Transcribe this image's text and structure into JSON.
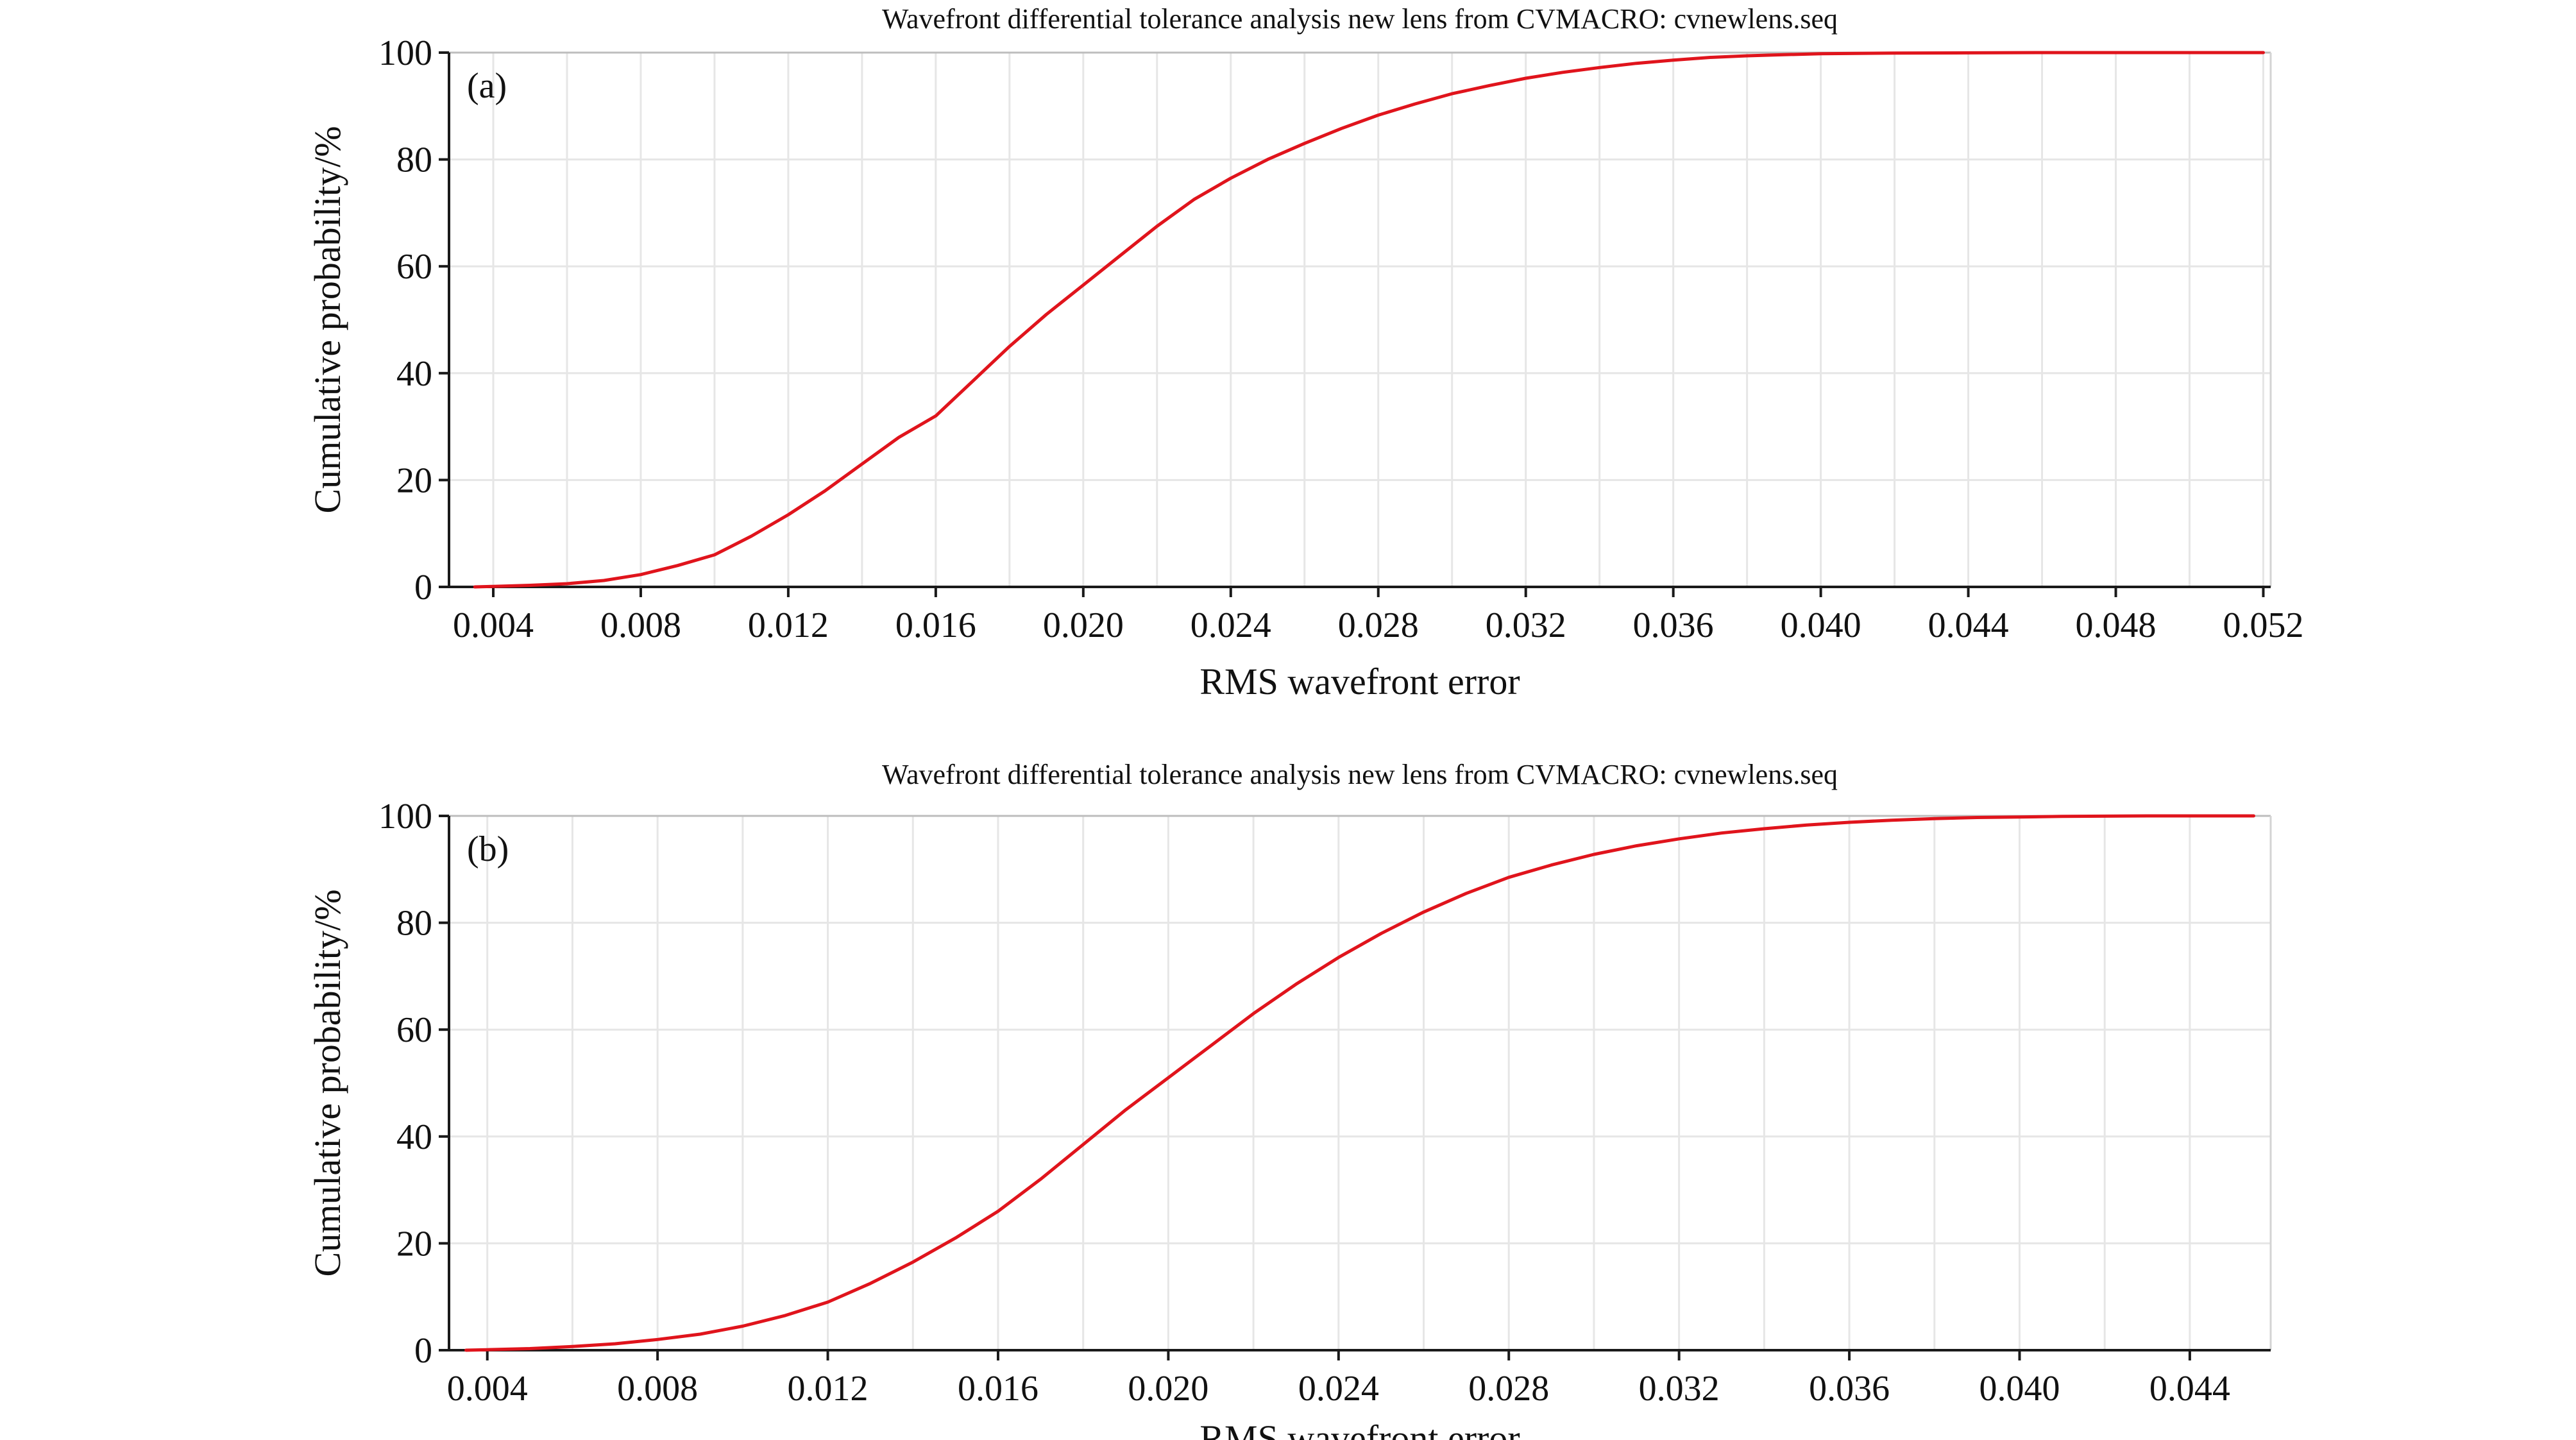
{
  "colors": {
    "curve": "#e0141c",
    "grid": "#e6e6e6",
    "axis": "#1a1a1a",
    "background": "#ffffff"
  },
  "chart_data": [
    {
      "type": "line",
      "panel_label": "(a)",
      "title": "Wavefront differential tolerance analysis new lens from CVMACRO: cvnewlens.seq",
      "xlabel": "RMS wavefront error",
      "ylabel": "Cumulative probability/%",
      "xlim": [
        0.0028,
        0.0522
      ],
      "ylim": [
        0,
        100
      ],
      "xticks": [
        0.004,
        0.008,
        0.012,
        0.016,
        0.02,
        0.024,
        0.028,
        0.032,
        0.036,
        0.04,
        0.044,
        0.048,
        0.052
      ],
      "xtick_labels": [
        "0.004",
        "0.008",
        "0.012",
        "0.016",
        "0.020",
        "0.024",
        "0.028",
        "0.032",
        "0.036",
        "0.040",
        "0.044",
        "0.048",
        "0.052"
      ],
      "yticks": [
        0,
        20,
        40,
        60,
        80,
        100
      ],
      "ytick_labels": [
        "0",
        "20",
        "40",
        "60",
        "80",
        "100"
      ],
      "grid": true,
      "series": [
        {
          "x": [
            0.0035,
            0.004,
            0.005,
            0.006,
            0.007,
            0.008,
            0.009,
            0.01,
            0.011,
            0.012,
            0.013,
            0.014,
            0.015,
            0.016,
            0.017,
            0.018,
            0.019,
            0.02,
            0.021,
            0.022,
            0.023,
            0.024,
            0.025,
            0.026,
            0.027,
            0.028,
            0.029,
            0.03,
            0.031,
            0.032,
            0.033,
            0.034,
            0.035,
            0.036,
            0.037,
            0.038,
            0.039,
            0.04,
            0.042,
            0.044,
            0.046,
            0.048,
            0.05,
            0.052
          ],
          "values": [
            0,
            0.1,
            0.3,
            0.6,
            1.2,
            2.3,
            4.0,
            6.0,
            9.5,
            13.5,
            18.0,
            23.0,
            28.0,
            32.0,
            38.5,
            45.0,
            51.0,
            56.5,
            62.0,
            67.5,
            72.5,
            76.5,
            80.0,
            83.0,
            85.8,
            88.3,
            90.4,
            92.3,
            93.8,
            95.2,
            96.3,
            97.2,
            98.0,
            98.6,
            99.1,
            99.4,
            99.6,
            99.8,
            99.9,
            99.95,
            100,
            100,
            100,
            100
          ]
        }
      ]
    },
    {
      "type": "line",
      "panel_label": "(b)",
      "title": "Wavefront differential tolerance analysis new lens from CVMACRO: cvnewlens.seq",
      "xlabel": "RMS wavefront error",
      "ylabel": "Cumulative probability/%",
      "xlim": [
        0.0031,
        0.0459
      ],
      "ylim": [
        0,
        100
      ],
      "xticks": [
        0.004,
        0.008,
        0.012,
        0.016,
        0.02,
        0.024,
        0.028,
        0.032,
        0.036,
        0.04,
        0.044
      ],
      "xtick_labels": [
        "0.004",
        "0.008",
        "0.012",
        "0.016",
        "0.020",
        "0.024",
        "0.028",
        "0.032",
        "0.036",
        "0.040",
        "0.044"
      ],
      "yticks": [
        0,
        20,
        40,
        60,
        80,
        100
      ],
      "ytick_labels": [
        "0",
        "20",
        "40",
        "60",
        "80",
        "100"
      ],
      "grid": true,
      "series": [
        {
          "x": [
            0.0035,
            0.004,
            0.005,
            0.006,
            0.007,
            0.008,
            0.009,
            0.01,
            0.011,
            0.012,
            0.013,
            0.014,
            0.015,
            0.016,
            0.017,
            0.018,
            0.019,
            0.02,
            0.021,
            0.022,
            0.023,
            0.024,
            0.025,
            0.026,
            0.027,
            0.028,
            0.029,
            0.03,
            0.031,
            0.032,
            0.033,
            0.034,
            0.035,
            0.036,
            0.037,
            0.038,
            0.039,
            0.04,
            0.041,
            0.042,
            0.043,
            0.044,
            0.0455
          ],
          "values": [
            0,
            0.1,
            0.3,
            0.7,
            1.2,
            2.0,
            3.0,
            4.5,
            6.5,
            9.0,
            12.5,
            16.5,
            21.0,
            26.0,
            32.0,
            38.5,
            45.0,
            51.0,
            57.0,
            63.0,
            68.5,
            73.5,
            78.0,
            82.0,
            85.5,
            88.5,
            90.8,
            92.8,
            94.4,
            95.7,
            96.8,
            97.6,
            98.3,
            98.8,
            99.2,
            99.5,
            99.7,
            99.8,
            99.9,
            99.95,
            100,
            100,
            100
          ]
        }
      ]
    }
  ]
}
